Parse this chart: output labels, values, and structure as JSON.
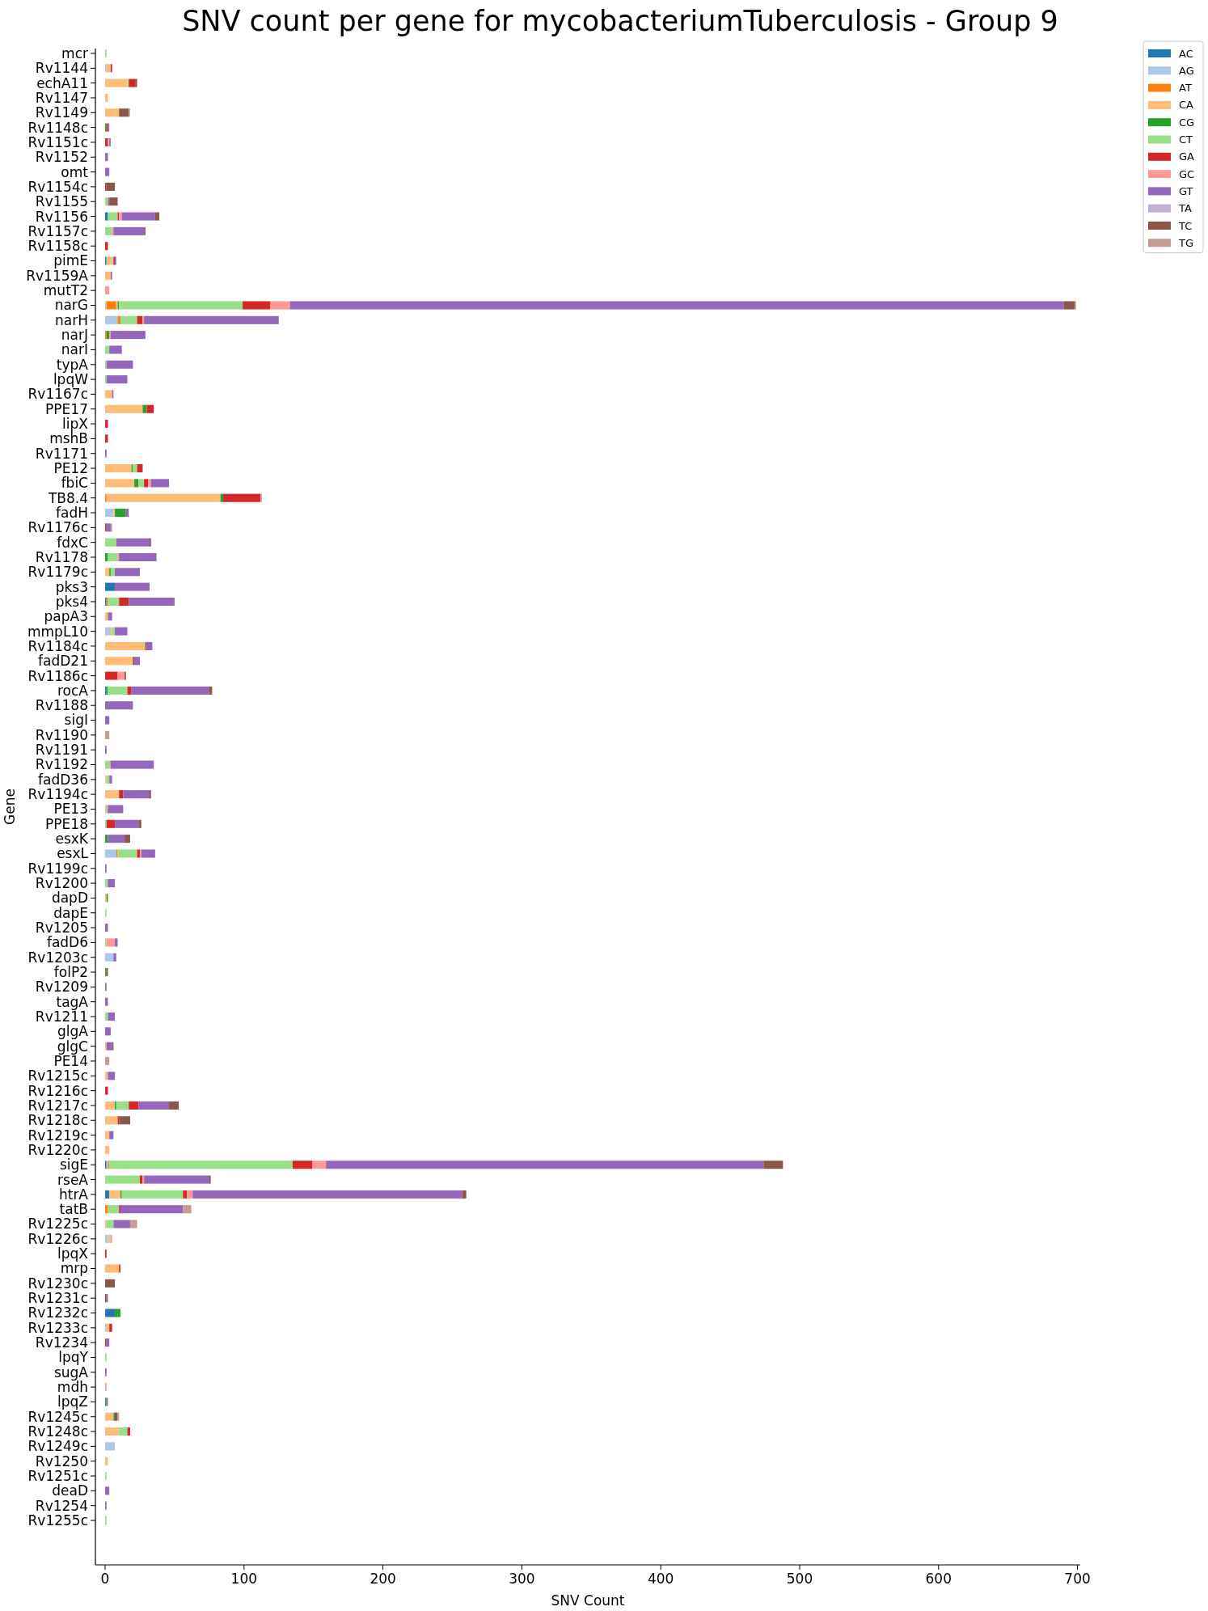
{
  "chart_data": {
    "type": "bar",
    "orientation": "horizontal",
    "stacked": true,
    "title": "SNV count per gene for mycobacteriumTuberculosis - Group 9",
    "xlabel": "SNV Count",
    "ylabel": "Gene",
    "legend": "top right",
    "xlim": [
      -7,
      702
    ],
    "xticks": [
      0,
      100,
      200,
      300,
      400,
      500,
      600,
      700
    ],
    "categories": [
      "mcr",
      "Rv1144",
      "echA11",
      "Rv1147",
      "Rv1149",
      "Rv1148c",
      "Rv1151c",
      "Rv1152",
      "omt",
      "Rv1154c",
      "Rv1155",
      "Rv1156",
      "Rv1157c",
      "Rv1158c",
      "pimE",
      "Rv1159A",
      "mutT2",
      "narG",
      "narH",
      "narJ",
      "narI",
      "typA",
      "lpqW",
      "Rv1167c",
      "PPE17",
      "lipX",
      "mshB",
      "Rv1171",
      "PE12",
      "fbiC",
      "TB8.4",
      "fadH",
      "Rv1176c",
      "fdxC",
      "Rv1178",
      "Rv1179c",
      "pks3",
      "pks4",
      "papA3",
      "mmpL10",
      "Rv1184c",
      "fadD21",
      "Rv1186c",
      "rocA",
      "Rv1188",
      "sigI",
      "Rv1190",
      "Rv1191",
      "Rv1192",
      "fadD36",
      "Rv1194c",
      "PE13",
      "PPE18",
      "esxK",
      "esxL",
      "Rv1199c",
      "Rv1200",
      "dapD",
      "dapE",
      "Rv1205",
      "fadD6",
      "Rv1203c",
      "folP2",
      "Rv1209",
      "tagA",
      "Rv1211",
      "glgA",
      "glgC",
      "PE14",
      "Rv1215c",
      "Rv1216c",
      "Rv1217c",
      "Rv1218c",
      "Rv1219c",
      "Rv1220c",
      "sigE",
      "rseA",
      "htrA",
      "tatB",
      "Rv1225c",
      "Rv1226c",
      "lpqX",
      "mrp",
      "Rv1230c",
      "Rv1231c",
      "Rv1232c",
      "Rv1233c",
      "Rv1234",
      "lpqY",
      "sugA",
      "mdh",
      "lpqZ",
      "Rv1245c",
      "Rv1248c",
      "Rv1249c",
      "Rv1250",
      "Rv1251c",
      "deaD",
      "Rv1254",
      "Rv1255c"
    ],
    "series": [
      {
        "name": "AC",
        "color": "#1f77b4",
        "values": [
          0,
          0,
          0,
          0,
          0,
          0,
          0,
          0,
          0,
          0,
          0,
          2,
          0,
          0,
          1,
          0,
          0,
          0,
          0,
          0,
          0,
          0,
          0,
          0,
          0,
          0,
          0,
          0,
          0,
          0,
          0,
          0,
          0,
          0,
          0,
          0,
          7,
          1,
          0,
          0,
          0,
          0,
          0,
          1,
          0,
          0,
          0,
          0,
          0,
          0,
          0,
          0,
          0,
          0,
          0,
          0,
          0,
          0,
          0,
          0,
          0,
          0,
          0,
          0,
          0,
          0,
          0,
          0,
          0,
          0,
          0,
          0,
          0,
          0,
          0,
          1,
          0,
          3,
          0,
          0,
          0,
          0,
          0,
          0,
          0,
          7,
          0,
          0,
          0,
          0,
          0,
          0,
          0,
          0,
          0,
          0,
          0,
          0,
          0,
          0
        ]
      },
      {
        "name": "AG",
        "color": "#aec7e8",
        "values": [
          0,
          1,
          0,
          0,
          0,
          0,
          0,
          0,
          0,
          0,
          0,
          0,
          0,
          0,
          0,
          0,
          0,
          1,
          9,
          0,
          0,
          0,
          0,
          0,
          0,
          0,
          0,
          0,
          0,
          0,
          0,
          6,
          0,
          0,
          0,
          0,
          0,
          0,
          0,
          4,
          0,
          0,
          0,
          0,
          0,
          0,
          0,
          0,
          0,
          0,
          0,
          0,
          0,
          0,
          8,
          0,
          0,
          0,
          0,
          0,
          0,
          6,
          0,
          0,
          0,
          0,
          0,
          0,
          0,
          0,
          0,
          0,
          0,
          0,
          0,
          1,
          0,
          0,
          0,
          0,
          2,
          0,
          0,
          0,
          0,
          0,
          1,
          0,
          0,
          0,
          0,
          0,
          0,
          0,
          7,
          0,
          0,
          0,
          0,
          0
        ]
      },
      {
        "name": "AT",
        "color": "#ff7f0e",
        "values": [
          0,
          0,
          0,
          0,
          0,
          0,
          0,
          0,
          0,
          0,
          0,
          0,
          0,
          0,
          0,
          0,
          0,
          7,
          2,
          1,
          0,
          0,
          0,
          0,
          0,
          0,
          0,
          0,
          0,
          0,
          1,
          0,
          0,
          0,
          0,
          0,
          0,
          1,
          0,
          0,
          0,
          0,
          0,
          0,
          0,
          0,
          0,
          0,
          0,
          0,
          0,
          0,
          0,
          0,
          1,
          0,
          0,
          0,
          0,
          0,
          0,
          0,
          0,
          0,
          0,
          0,
          0,
          0,
          0,
          0,
          0,
          0,
          0,
          0,
          0,
          1,
          0,
          0,
          2,
          0,
          0,
          0,
          0,
          0,
          0,
          0,
          0,
          0,
          0,
          0,
          0,
          0,
          0,
          0,
          0,
          0,
          0,
          0,
          0,
          0
        ]
      },
      {
        "name": "CA",
        "color": "#ffbb78",
        "values": [
          0,
          3,
          16,
          2,
          10,
          0,
          0,
          0,
          0,
          0,
          0,
          0,
          0,
          0,
          4,
          4,
          0,
          1,
          0,
          0,
          0,
          0,
          0,
          5,
          27,
          0,
          0,
          0,
          19,
          21,
          82,
          1,
          0,
          0,
          0,
          3,
          0,
          0,
          2,
          1,
          28,
          19,
          0,
          0,
          0,
          0,
          0,
          0,
          0,
          1,
          10,
          0,
          0,
          0,
          0,
          0,
          0,
          1,
          0,
          0,
          0,
          0,
          0,
          0,
          0,
          0,
          0,
          1,
          0,
          2,
          0,
          7,
          9,
          3,
          3,
          0,
          0,
          8,
          0,
          1,
          1,
          0,
          10,
          0,
          0,
          0,
          2,
          0,
          0,
          0,
          0,
          0,
          6,
          10,
          0,
          2,
          0,
          0,
          0,
          0
        ]
      },
      {
        "name": "CG",
        "color": "#2ca02c",
        "values": [
          0,
          0,
          0,
          0,
          0,
          1,
          0,
          0,
          0,
          0,
          0,
          0,
          0,
          0,
          0,
          0,
          0,
          1,
          0,
          2,
          0,
          0,
          0,
          0,
          3,
          0,
          0,
          0,
          1,
          3,
          2,
          8,
          0,
          0,
          2,
          1,
          0,
          0,
          0,
          0,
          0,
          0,
          0,
          1,
          0,
          0,
          0,
          0,
          0,
          0,
          0,
          0,
          0,
          2,
          0,
          0,
          0,
          1,
          0,
          0,
          0,
          0,
          1,
          0,
          0,
          0,
          0,
          0,
          0,
          0,
          0,
          1,
          0,
          0,
          0,
          0,
          0,
          1,
          0,
          0,
          0,
          0,
          0,
          0,
          0,
          4,
          0,
          0,
          0,
          0,
          0,
          1,
          1,
          0,
          0,
          0,
          0,
          0,
          0,
          0
        ]
      },
      {
        "name": "CT",
        "color": "#98df8a",
        "values": [
          1,
          0,
          1,
          0,
          0,
          0,
          0,
          0,
          0,
          0,
          2,
          7,
          5,
          0,
          1,
          0,
          0,
          89,
          12,
          0,
          3,
          1,
          1,
          0,
          0,
          0,
          0,
          0,
          3,
          4,
          0,
          0,
          0,
          8,
          7,
          3,
          0,
          8,
          0,
          2,
          1,
          1,
          0,
          14,
          0,
          0,
          0,
          0,
          3,
          2,
          0,
          1,
          1,
          0,
          14,
          0,
          2,
          0,
          1,
          0,
          1,
          0,
          0,
          0,
          0,
          2,
          0,
          0,
          0,
          0,
          0,
          9,
          0,
          0,
          0,
          132,
          25,
          44,
          8,
          5,
          1,
          0,
          0,
          0,
          0,
          0,
          0,
          0,
          1,
          0,
          0,
          0,
          0,
          6,
          0,
          0,
          1,
          0,
          0,
          1
        ]
      },
      {
        "name": "GA",
        "color": "#d62728",
        "values": [
          0,
          1,
          5,
          0,
          0,
          1,
          2,
          0,
          0,
          1,
          0,
          1,
          0,
          2,
          1,
          0,
          0,
          20,
          4,
          0,
          0,
          0,
          0,
          0,
          5,
          2,
          2,
          0,
          4,
          3,
          27,
          0,
          1,
          0,
          0,
          0,
          0,
          7,
          0,
          0,
          1,
          1,
          9,
          3,
          0,
          0,
          0,
          0,
          0,
          0,
          3,
          0,
          6,
          0,
          2,
          0,
          0,
          0,
          0,
          0,
          0,
          0,
          0,
          0,
          0,
          0,
          0,
          0,
          0,
          0,
          2,
          7,
          1,
          0,
          0,
          14,
          2,
          3,
          1,
          0,
          0,
          1,
          1,
          0,
          1,
          0,
          2,
          1,
          0,
          0,
          0,
          0,
          0,
          2,
          0,
          0,
          0,
          0,
          0,
          0
        ]
      },
      {
        "name": "GC",
        "color": "#ff9896",
        "values": [
          0,
          0,
          0,
          0,
          0,
          0,
          1,
          0,
          0,
          0,
          0,
          2,
          1,
          0,
          0,
          0,
          3,
          14,
          1,
          1,
          0,
          0,
          0,
          0,
          0,
          0,
          0,
          0,
          0,
          2,
          0,
          0,
          0,
          0,
          1,
          0,
          0,
          0,
          0,
          0,
          0,
          0,
          5,
          0,
          0,
          0,
          0,
          0,
          1,
          0,
          0,
          1,
          0,
          0,
          1,
          0,
          0,
          0,
          0,
          0,
          6,
          0,
          0,
          0,
          0,
          0,
          0,
          0,
          0,
          0,
          0,
          0,
          0,
          0,
          0,
          10,
          1,
          4,
          0,
          0,
          1,
          0,
          0,
          0,
          0,
          0,
          0,
          0,
          0,
          0,
          1,
          0,
          0,
          0,
          0,
          0,
          0,
          0,
          0,
          0
        ]
      },
      {
        "name": "GT",
        "color": "#9467bd",
        "values": [
          0,
          0,
          0,
          0,
          0,
          1,
          1,
          2,
          3,
          0,
          1,
          24,
          22,
          0,
          1,
          1,
          0,
          557,
          97,
          25,
          9,
          19,
          15,
          1,
          0,
          0,
          0,
          1,
          0,
          13,
          0,
          2,
          3,
          24,
          27,
          18,
          25,
          33,
          3,
          9,
          4,
          4,
          0,
          56,
          20,
          3,
          0,
          1,
          31,
          2,
          19,
          11,
          17,
          12,
          10,
          1,
          5,
          0,
          0,
          2,
          2,
          2,
          0,
          1,
          2,
          5,
          4,
          4,
          0,
          5,
          0,
          22,
          0,
          3,
          0,
          315,
          47,
          194,
          45,
          12,
          0,
          0,
          0,
          0,
          1,
          0,
          0,
          2,
          0,
          1,
          0,
          1,
          0,
          0,
          0,
          0,
          0,
          3,
          1,
          0
        ]
      },
      {
        "name": "TA",
        "color": "#c5b0d5",
        "values": [
          0,
          0,
          0,
          0,
          0,
          0,
          0,
          0,
          0,
          0,
          0,
          0,
          0,
          0,
          0,
          0,
          0,
          0,
          0,
          0,
          0,
          0,
          0,
          0,
          0,
          0,
          0,
          0,
          0,
          0,
          1,
          0,
          0,
          0,
          0,
          0,
          0,
          0,
          0,
          0,
          0,
          0,
          0,
          0,
          0,
          0,
          0,
          0,
          0,
          0,
          0,
          0,
          0,
          0,
          0,
          0,
          0,
          0,
          0,
          0,
          0,
          0,
          0,
          0,
          0,
          0,
          0,
          0,
          0,
          0,
          0,
          0,
          0,
          0,
          0,
          0,
          0,
          0,
          0,
          0,
          0,
          0,
          0,
          0,
          0,
          0,
          0,
          0,
          0,
          0,
          0,
          0,
          0,
          0,
          0,
          0,
          0,
          0,
          0,
          0
        ]
      },
      {
        "name": "TC",
        "color": "#8c564b",
        "values": [
          0,
          0,
          1,
          0,
          7,
          0,
          0,
          0,
          0,
          6,
          6,
          3,
          1,
          0,
          0,
          0,
          0,
          8,
          0,
          0,
          0,
          0,
          0,
          0,
          0,
          0,
          0,
          0,
          0,
          0,
          0,
          0,
          0,
          1,
          0,
          0,
          0,
          0,
          0,
          0,
          0,
          0,
          1,
          2,
          0,
          0,
          0,
          0,
          0,
          0,
          1,
          0,
          2,
          4,
          0,
          0,
          0,
          0,
          0,
          0,
          0,
          0,
          1,
          0,
          0,
          0,
          0,
          1,
          0,
          0,
          0,
          7,
          8,
          0,
          0,
          14,
          1,
          3,
          0,
          0,
          0,
          0,
          0,
          7,
          0,
          0,
          0,
          0,
          0,
          0,
          0,
          0,
          2,
          0,
          0,
          0,
          0,
          0,
          0,
          0
        ]
      },
      {
        "name": "TG",
        "color": "#c49c94",
        "values": [
          0,
          0,
          0,
          0,
          1,
          0,
          0,
          0,
          0,
          0,
          0,
          0,
          0,
          0,
          0,
          0,
          0,
          1,
          0,
          0,
          0,
          0,
          0,
          0,
          0,
          0,
          0,
          0,
          0,
          0,
          0,
          0,
          1,
          0,
          0,
          0,
          0,
          0,
          0,
          0,
          0,
          0,
          0,
          0,
          0,
          0,
          3,
          0,
          0,
          0,
          0,
          0,
          0,
          0,
          0,
          0,
          0,
          0,
          0,
          0,
          0,
          0,
          0,
          0,
          0,
          0,
          0,
          0,
          3,
          0,
          0,
          0,
          0,
          0,
          0,
          0,
          0,
          0,
          6,
          5,
          0,
          0,
          0,
          0,
          0,
          0,
          0,
          0,
          0,
          0,
          0,
          0,
          1,
          0,
          0,
          0,
          0,
          0,
          0,
          0
        ]
      }
    ]
  }
}
